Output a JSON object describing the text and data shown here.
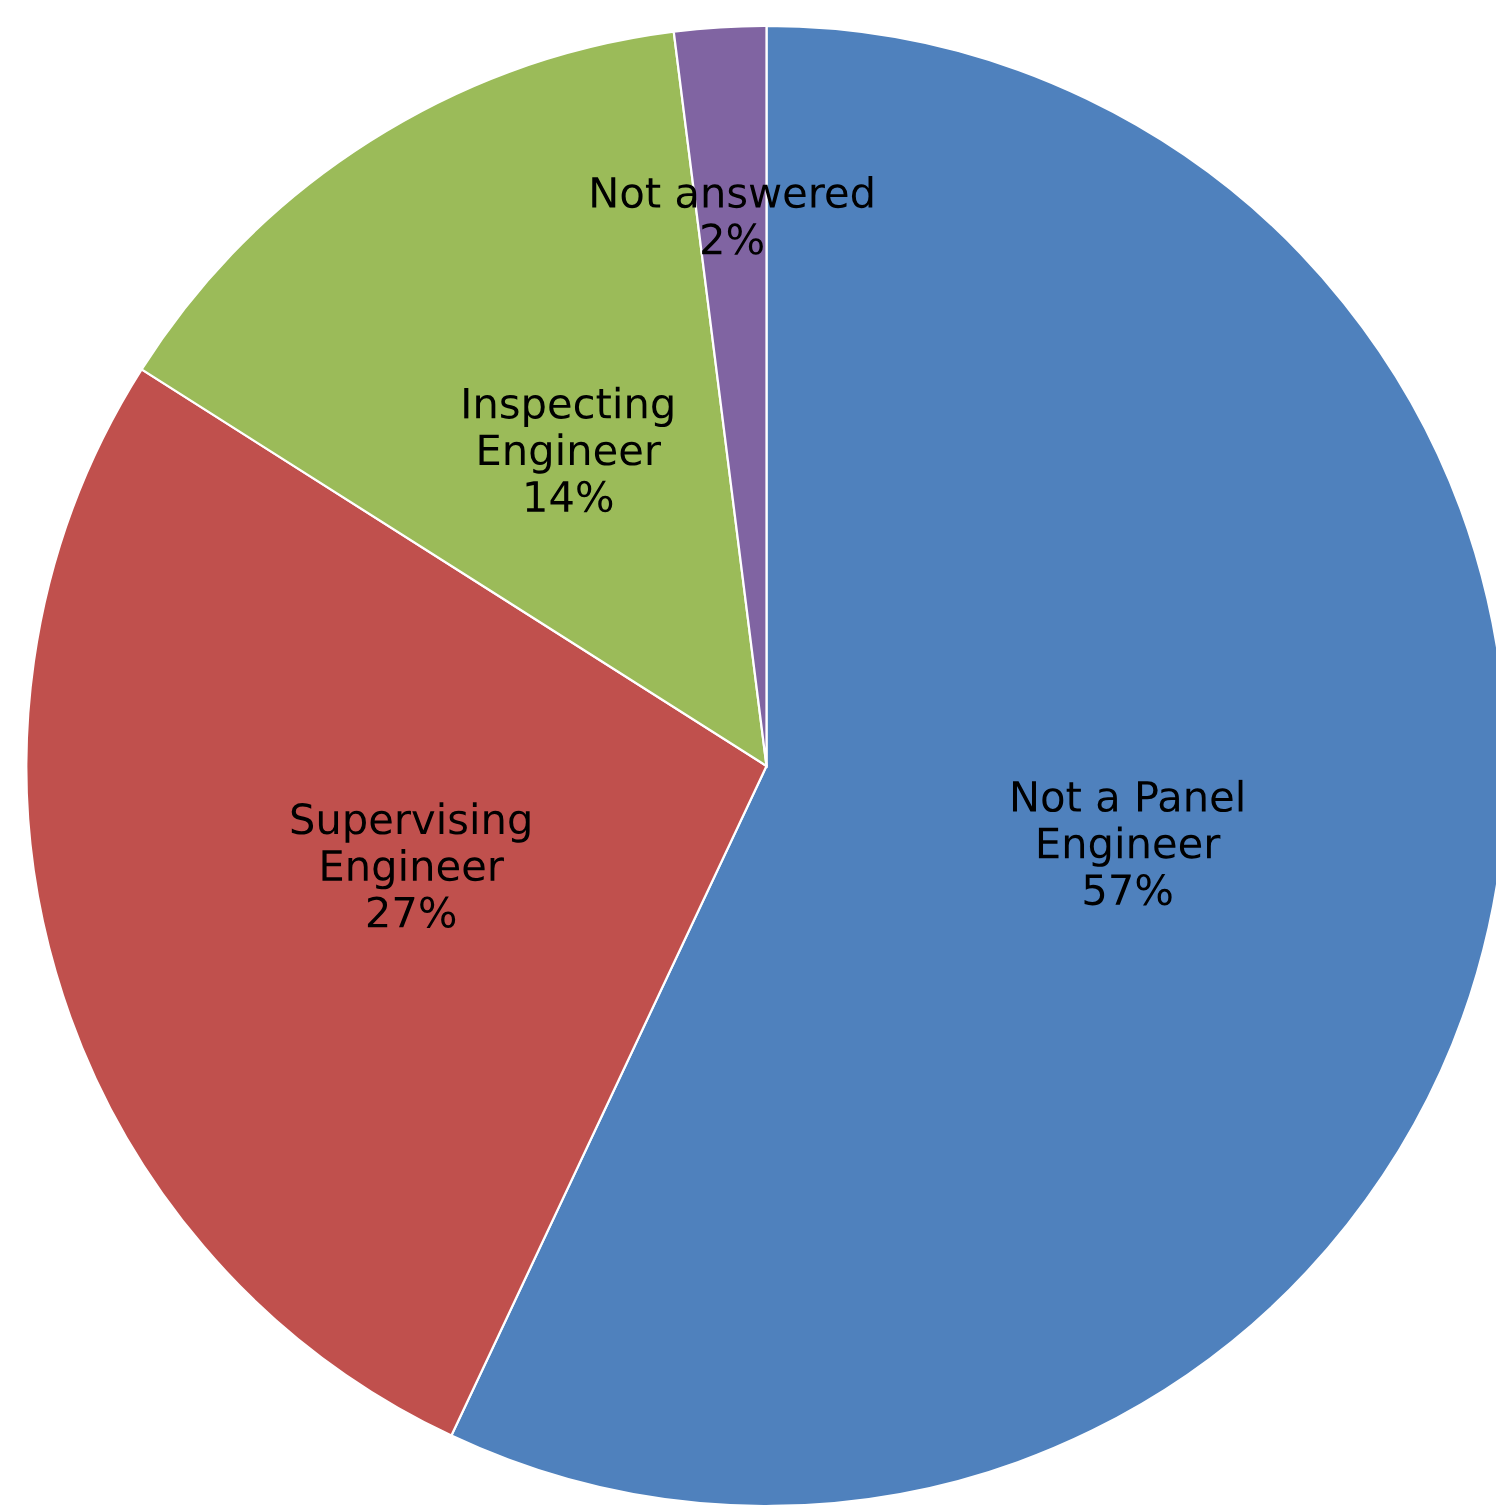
{
  "chart_data": {
    "type": "pie",
    "categories": [
      "Not a Panel\nEngineer",
      "Supervising\nEngineer",
      "Inspecting\nEngineer",
      "Not answered"
    ],
    "values": [
      57,
      27,
      14,
      2
    ],
    "value_labels": [
      "57%",
      "27%",
      "14%",
      "2%"
    ],
    "colors": [
      "#4f81bd",
      "#c0504d",
      "#9bbb59",
      "#8064a2"
    ],
    "legend": false
  }
}
